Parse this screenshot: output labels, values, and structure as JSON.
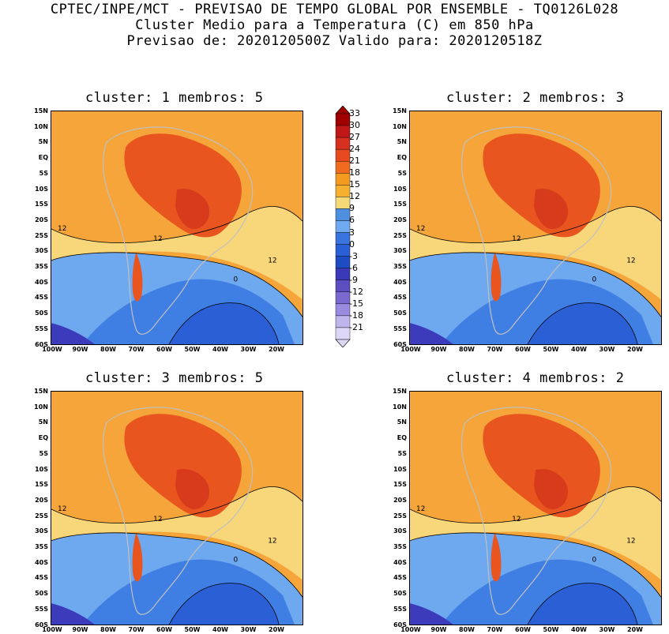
{
  "header": {
    "line1": "CPTEC/INPE/MCT - PREVISAO DE TEMPO GLOBAL POR ENSEMBLE - TQ0126L028",
    "line2": "Cluster Medio para a Temperatura (C) em 850 hPa",
    "line3": "Previsao de: 2020120500Z   Valido para: 2020120518Z"
  },
  "panels": [
    {
      "title": "cluster: 1  membros: 5"
    },
    {
      "title": "cluster: 2  membros: 3"
    },
    {
      "title": "cluster: 3  membros: 5"
    },
    {
      "title": "cluster: 4  membros: 2"
    }
  ],
  "lat_labels": [
    "15N",
    "10N",
    "5N",
    "EQ",
    "5S",
    "10S",
    "15S",
    "20S",
    "25S",
    "30S",
    "35S",
    "40S",
    "45S",
    "50S",
    "55S",
    "60S"
  ],
  "lon_labels": [
    "100W",
    "90W",
    "80W",
    "70W",
    "60W",
    "50W",
    "40W",
    "30W",
    "20W"
  ],
  "contour_labels": {
    "twelve": "12",
    "zero": "0"
  },
  "colorbar": {
    "labels": [
      "33",
      "30",
      "27",
      "24",
      "21",
      "18",
      "15",
      "12",
      "9",
      "6",
      "3",
      "0",
      "-3",
      "-6",
      "-9",
      "-12",
      "-15",
      "-18",
      "-21"
    ],
    "colors": [
      "#a00000",
      "#c01818",
      "#d63020",
      "#e84a20",
      "#f06a20",
      "#f59a20",
      "#f5b030",
      "#f5d878",
      "#4f8fe0",
      "#6fa9ef",
      "#3a74de",
      "#2a5fd6",
      "#1e4cc2",
      "#3a3ab8",
      "#5a4ec0",
      "#7a6ad0",
      "#9a8ae0",
      "#c0b4ec",
      "#ddd6f6"
    ]
  },
  "colors": {
    "warm": "#f5a53a",
    "hot": "#e8551f",
    "hotter": "#d83a1c",
    "yellow": "#f7d77a",
    "coolLight": "#6ea8ef",
    "cool": "#3f7fe3",
    "cold": "#2a5fd6",
    "colder": "#3b3bbb",
    "land": "#c0c0c0"
  }
}
